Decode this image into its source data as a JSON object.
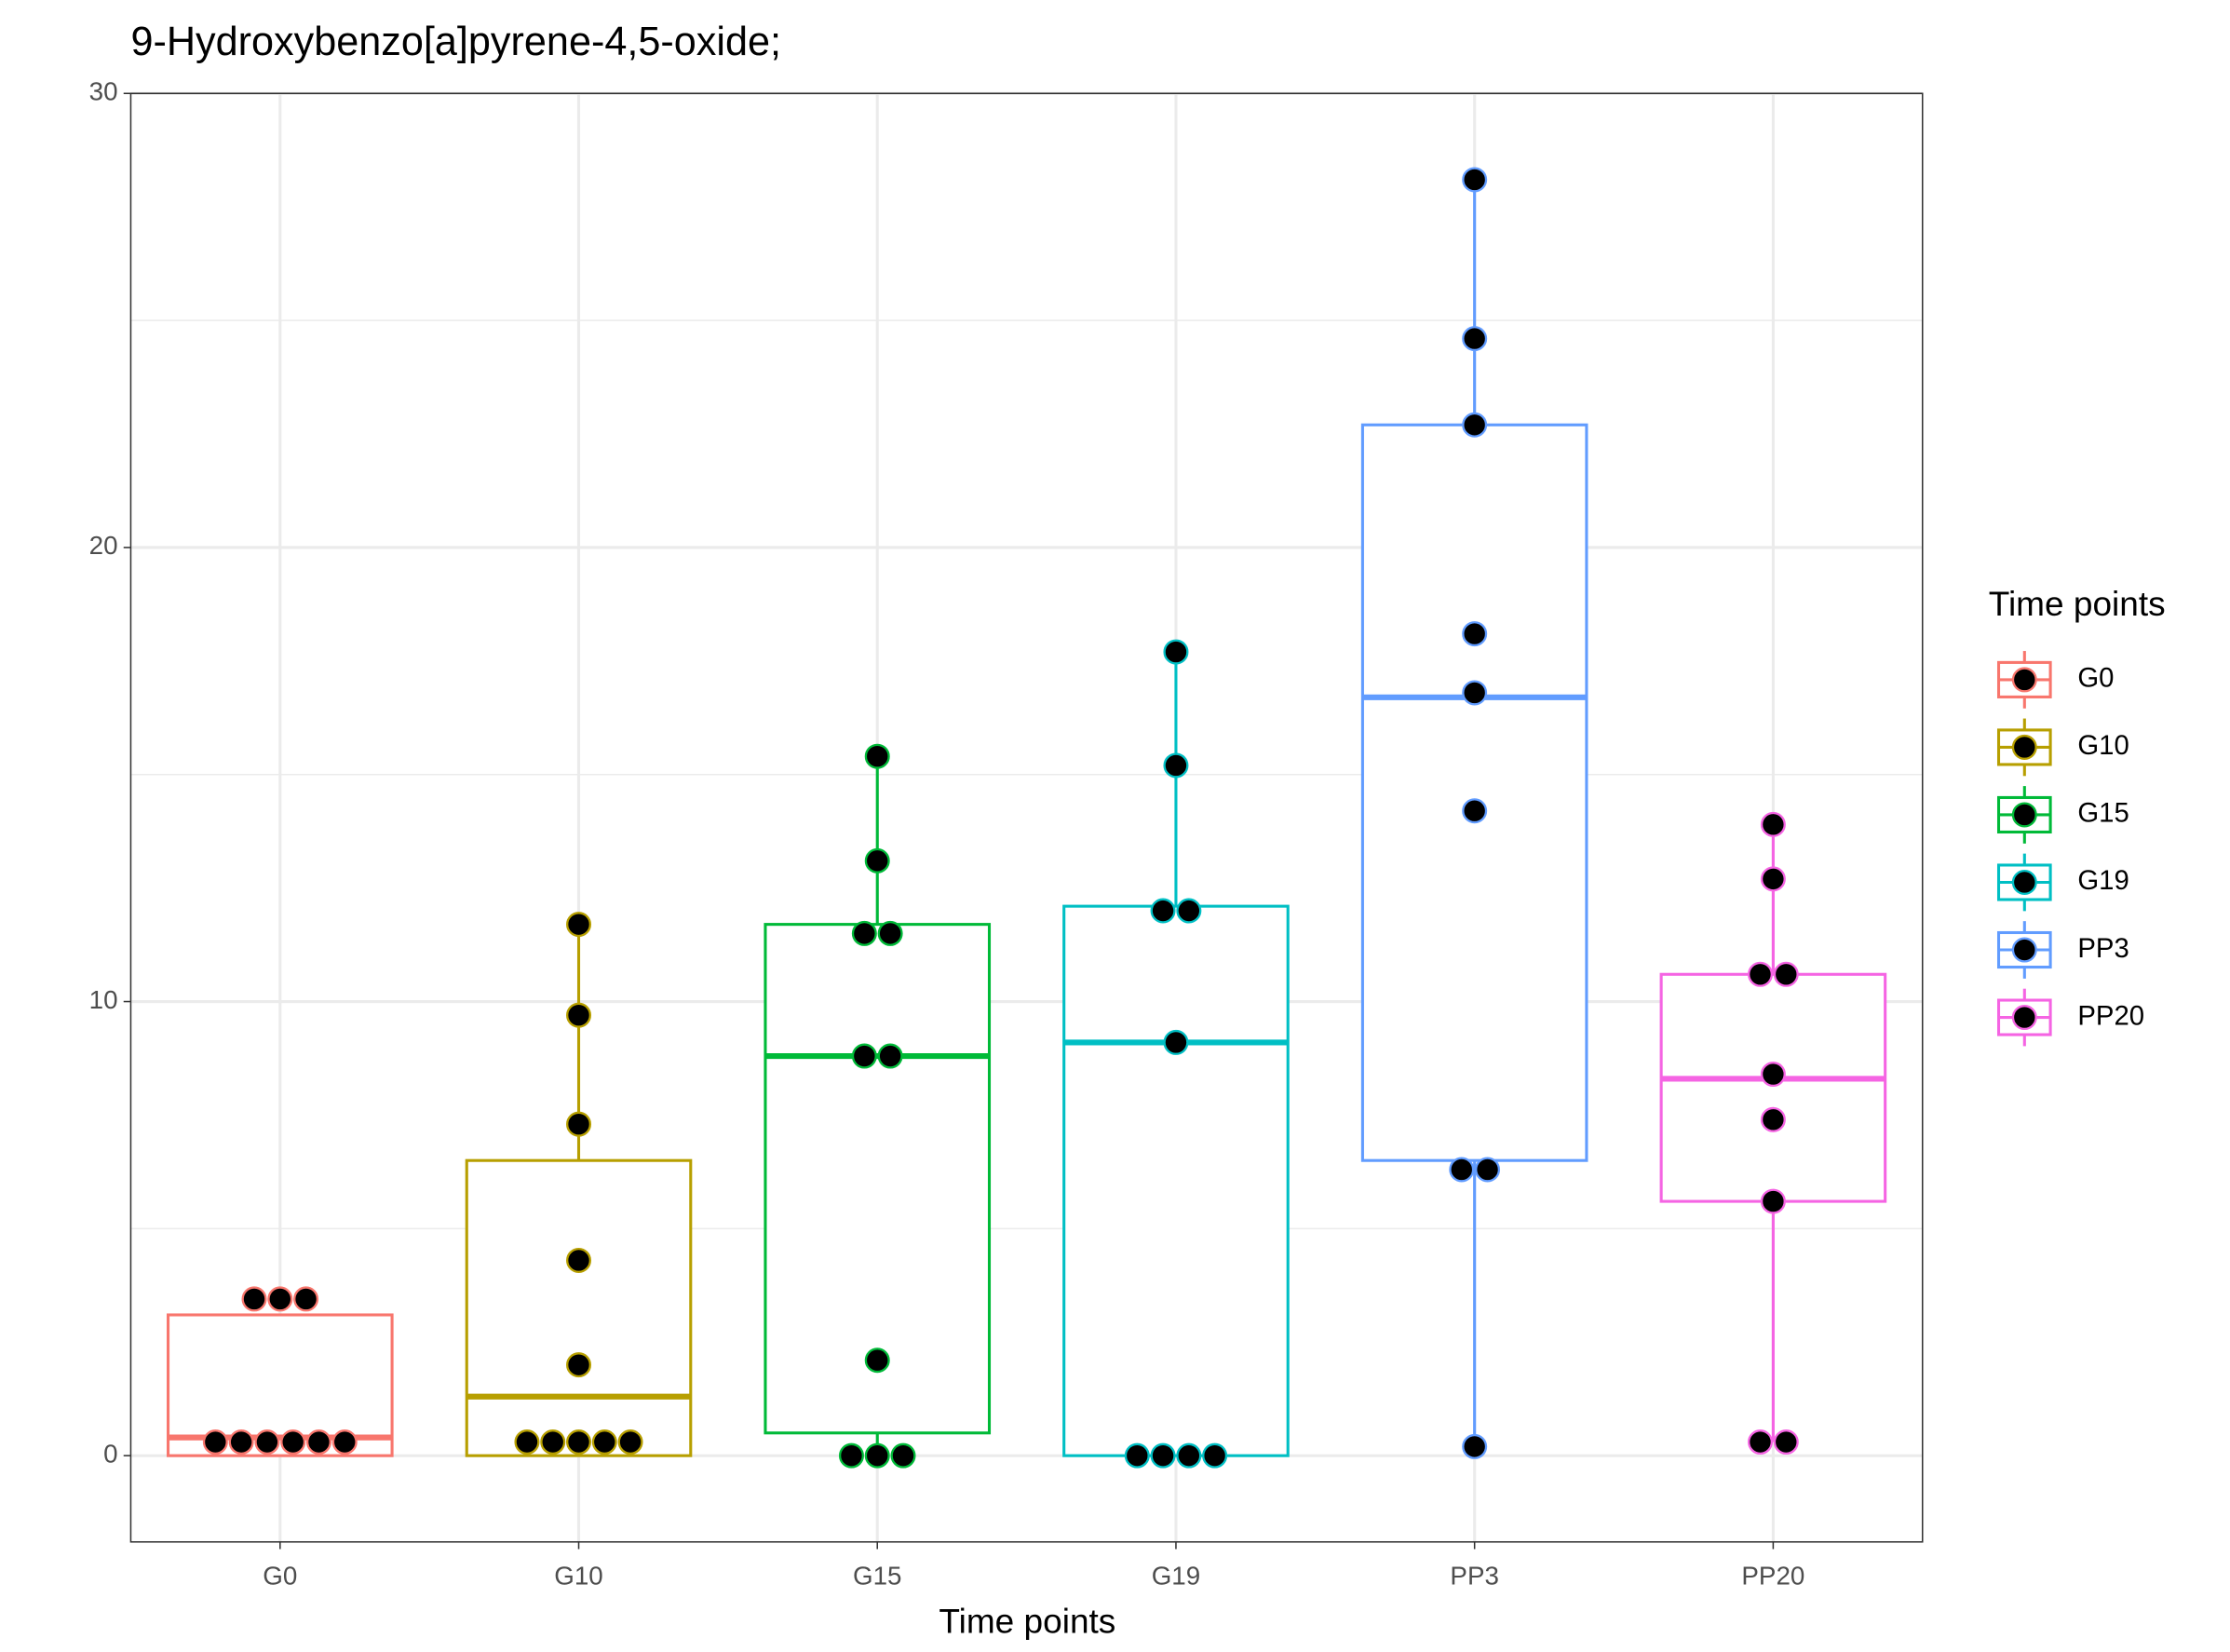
{
  "chart_data": {
    "type": "box",
    "title": "9-Hydroxybenzo[a]pyrene-4,5-oxide;",
    "x_label": "Time points",
    "legend_title": "Time points",
    "legend": "right",
    "grid": true,
    "categories": [
      "G0",
      "G10",
      "G15",
      "G19",
      "PP3",
      "PP20"
    ],
    "ylim": [
      -1.9,
      30
    ],
    "yticks": [
      0,
      10,
      20,
      30
    ],
    "y_minor_grid": [
      5,
      15,
      25
    ],
    "series": [
      {
        "name": "G0",
        "color": "#F8766D",
        "q1": 0,
        "median": 0.4,
        "q3": 3.1,
        "whisker_low": 0,
        "whisker_high": 3.1,
        "points": [
          0.3,
          0.3,
          0.3,
          0.3,
          0.3,
          0.3,
          3.45,
          3.45,
          3.45
        ]
      },
      {
        "name": "G10",
        "color": "#B79F00",
        "q1": 0,
        "median": 1.3,
        "q3": 6.5,
        "whisker_low": 0,
        "whisker_high": 11.7,
        "points": [
          0.3,
          0.3,
          0.3,
          0.3,
          0.3,
          2.0,
          4.3,
          7.3,
          9.7,
          11.7
        ]
      },
      {
        "name": "G15",
        "color": "#00BA38",
        "q1": 0.5,
        "median": 8.8,
        "q3": 11.7,
        "whisker_low": 0,
        "whisker_high": 15.4,
        "points": [
          0,
          0,
          0,
          2.1,
          8.8,
          8.8,
          11.5,
          11.5,
          13.1,
          15.4
        ]
      },
      {
        "name": "G19",
        "color": "#00BFC4",
        "q1": 0,
        "median": 9.1,
        "q3": 12.1,
        "whisker_low": 0,
        "whisker_high": 17.7,
        "points": [
          0,
          0,
          0,
          0,
          9.1,
          12.0,
          12.0,
          15.2,
          17.7
        ]
      },
      {
        "name": "PP3",
        "color": "#619CFF",
        "q1": 6.5,
        "median": 16.7,
        "q3": 22.7,
        "whisker_low": 0.2,
        "whisker_high": 28.1,
        "points": [
          0.2,
          6.3,
          6.3,
          14.2,
          16.8,
          18.1,
          22.7,
          24.6,
          28.1
        ]
      },
      {
        "name": "PP20",
        "color": "#F564E3",
        "q1": 5.6,
        "median": 8.3,
        "q3": 10.6,
        "whisker_low": 0.3,
        "whisker_high": 13.9,
        "points": [
          0.3,
          0.3,
          5.6,
          7.4,
          8.4,
          10.6,
          10.6,
          12.7,
          13.9
        ]
      }
    ]
  }
}
